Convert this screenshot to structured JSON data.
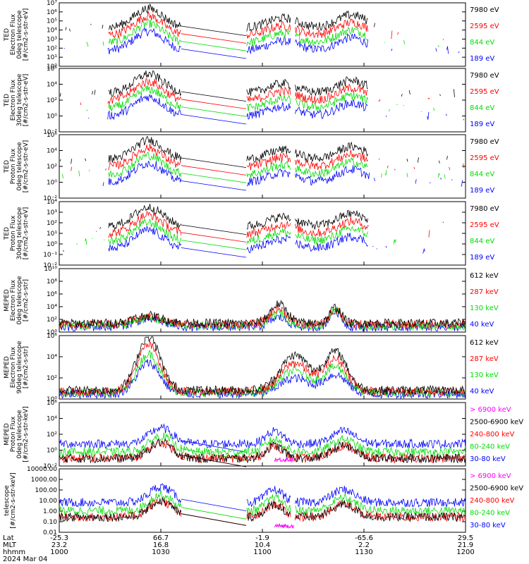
{
  "chart_data": {
    "type": "line",
    "date": "2024 Mar 04",
    "x_rows": [
      {
        "label": "Lat",
        "values": [
          "-25.3",
          "66.7",
          "-1.9",
          "-65.6",
          "29.5"
        ]
      },
      {
        "label": "MLT",
        "values": [
          "23.2",
          "16.8",
          "10.4",
          "2.2",
          "21.9"
        ]
      },
      {
        "label": "hhmm",
        "values": [
          "1000",
          "1030",
          "1100",
          "1130",
          "1200"
        ]
      }
    ],
    "panels": [
      {
        "ylabel": "TED\nElectron Flux\n0deg telescope\n[#/cm2-s-str-eV]",
        "yscale": "log",
        "ylim": [
          1,
          10000000
        ],
        "yticks": [
          {
            "v": 1,
            "t": "10⁰"
          },
          {
            "v": 10,
            "t": "10¹"
          },
          {
            "v": 100,
            "t": "10²"
          },
          {
            "v": 1000,
            "t": "10³"
          },
          {
            "v": 10000,
            "t": "10⁴"
          },
          {
            "v": 100000,
            "t": "10⁵"
          },
          {
            "v": 1000000,
            "t": "10⁶"
          },
          {
            "v": 10000000,
            "t": "10⁷"
          }
        ],
        "series": [
          {
            "name": "7980 eV",
            "color": "#000000"
          },
          {
            "name": "2595 eV",
            "color": "#ff0000"
          },
          {
            "name": "844 eV",
            "color": "#00dd00"
          },
          {
            "name": "189 eV",
            "color": "#0000ff"
          }
        ]
      },
      {
        "ylabel": "TED\nElectron Flux\n30deg telescope\n[#/cm2-s-str-eV]",
        "yscale": "log",
        "ylim": [
          0.01,
          1000000
        ],
        "yticks": [
          {
            "v": 0.01,
            "t": "10⁻²"
          },
          {
            "v": 1,
            "t": "10⁰"
          },
          {
            "v": 100,
            "t": "10²"
          },
          {
            "v": 10000,
            "t": "10⁴"
          },
          {
            "v": 1000000,
            "t": "10⁶"
          }
        ],
        "series": [
          {
            "name": "7980 eV",
            "color": "#000000"
          },
          {
            "name": "2595 eV",
            "color": "#ff0000"
          },
          {
            "name": "844 eV",
            "color": "#00dd00"
          },
          {
            "name": "189 eV",
            "color": "#0000ff"
          }
        ]
      },
      {
        "ylabel": "TED\nProton Flux\n0deg telescope\n[#/cm2-s-str-eV]",
        "yscale": "log",
        "ylim": [
          0.01,
          1000000
        ],
        "yticks": [
          {
            "v": 0.01,
            "t": "10⁻²"
          },
          {
            "v": 1,
            "t": "10⁰"
          },
          {
            "v": 100,
            "t": "10²"
          },
          {
            "v": 10000,
            "t": "10⁴"
          },
          {
            "v": 1000000,
            "t": "10⁶"
          }
        ],
        "series": [
          {
            "name": "7980 eV",
            "color": "#000000"
          },
          {
            "name": "2595 eV",
            "color": "#ff0000"
          },
          {
            "name": "844 eV",
            "color": "#00dd00"
          },
          {
            "name": "189 eV",
            "color": "#0000ff"
          }
        ]
      },
      {
        "ylabel": "TED\nProton Flux\n30deg telescope\n[#/cm2-s-str-eV]",
        "yscale": "log",
        "ylim": [
          0.01,
          10000
        ],
        "yticks": [
          {
            "v": 0.01,
            "t": "10⁻²"
          },
          {
            "v": 0.1,
            "t": "10⁻¹"
          },
          {
            "v": 1,
            "t": "10⁰"
          },
          {
            "v": 10,
            "t": "10¹"
          },
          {
            "v": 100,
            "t": "10²"
          },
          {
            "v": 1000,
            "t": "10³"
          },
          {
            "v": 10000,
            "t": "10⁴"
          }
        ],
        "series": [
          {
            "name": "7980 eV",
            "color": "#000000"
          },
          {
            "name": "2595 eV",
            "color": "#ff0000"
          },
          {
            "name": "844 eV",
            "color": "#00dd00"
          },
          {
            "name": "189 eV",
            "color": "#0000ff"
          }
        ]
      },
      {
        "ylabel": "MEPED\nElectron Flux\n0deg telescope\n[#/cm2-s-str]",
        "yscale": "log",
        "ylim": [
          1,
          10000000000
        ],
        "yticks": [
          {
            "v": 1,
            "t": "10⁰"
          },
          {
            "v": 100,
            "t": "10²"
          },
          {
            "v": 10000,
            "t": "10⁴"
          },
          {
            "v": 1000000,
            "t": "10⁶"
          },
          {
            "v": 100000000,
            "t": "10⁸"
          },
          {
            "v": 10000000000,
            "t": "10¹⁰"
          }
        ],
        "series": [
          {
            "name": "612 keV",
            "color": "#000000"
          },
          {
            "name": "287 keV",
            "color": "#ff0000"
          },
          {
            "name": "130 keV",
            "color": "#00dd00"
          },
          {
            "name": "40 keV",
            "color": "#0000ff"
          }
        ]
      },
      {
        "ylabel": "MEPED\nElectron Flux\n90deg telescope\n[#/cm2-s-str]",
        "yscale": "log",
        "ylim": [
          1,
          1000000
        ],
        "yticks": [
          {
            "v": 1,
            "t": "10⁰"
          },
          {
            "v": 100,
            "t": "10²"
          },
          {
            "v": 10000,
            "t": "10⁴"
          },
          {
            "v": 1000000,
            "t": "10⁶"
          }
        ],
        "series": [
          {
            "name": "612 keV",
            "color": "#000000"
          },
          {
            "name": "287 keV",
            "color": "#ff0000"
          },
          {
            "name": "130 keV",
            "color": "#00dd00"
          },
          {
            "name": "40 keV",
            "color": "#0000ff"
          }
        ]
      },
      {
        "ylabel": "MEPED\nProton Flux\n0deg telescope\n[#/cm2-s-str-keV]",
        "yscale": "log",
        "ylim": [
          0.01,
          1000000
        ],
        "yticks": [
          {
            "v": 0.01,
            "t": "10⁻²"
          },
          {
            "v": 1,
            "t": "10⁰"
          },
          {
            "v": 100,
            "t": "10²"
          },
          {
            "v": 10000,
            "t": "10⁴"
          },
          {
            "v": 1000000,
            "t": "10⁶"
          }
        ],
        "series": [
          {
            "name": "> 6900 keV",
            "color": "#ff00ff"
          },
          {
            "name": "2500-6900 keV",
            "color": "#000000"
          },
          {
            "name": "240-800 keV",
            "color": "#ff0000"
          },
          {
            "name": "80-240 keV",
            "color": "#00dd00"
          },
          {
            "name": "30-80 keV",
            "color": "#0000ff"
          }
        ]
      },
      {
        "ylabel": "telescope\n[#/cm2-s-str-keV]",
        "yscale": "log",
        "ylim": [
          0.01,
          10000
        ],
        "yticks": [
          {
            "v": 0.01,
            "t": "0.01"
          },
          {
            "v": 0.1,
            "t": "0.10"
          },
          {
            "v": 1,
            "t": "1.00"
          },
          {
            "v": 10,
            "t": "10.00"
          },
          {
            "v": 100,
            "t": "100.00"
          },
          {
            "v": 1000,
            "t": "1000.00"
          },
          {
            "v": 10000,
            "t": "10000.00"
          }
        ],
        "series": [
          {
            "name": "> 6900 keV",
            "color": "#ff00ff"
          },
          {
            "name": "2500-6900 keV",
            "color": "#000000"
          },
          {
            "name": "240-800 keV",
            "color": "#ff0000"
          },
          {
            "name": "80-240 keV",
            "color": "#00dd00"
          },
          {
            "name": "30-80 keV",
            "color": "#0000ff"
          }
        ]
      }
    ]
  }
}
